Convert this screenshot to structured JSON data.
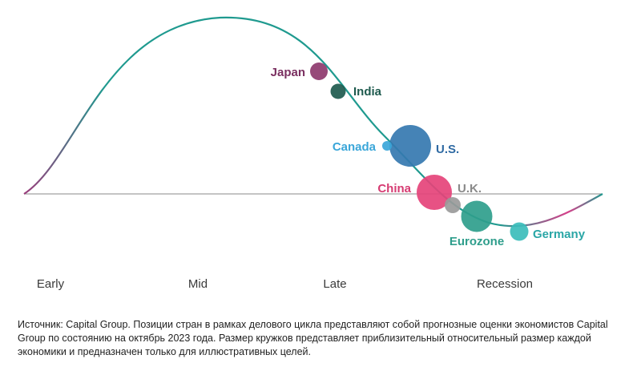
{
  "colors": {
    "curve_start": "#9c3c7c",
    "curve_main": "#1f9a8f",
    "curve_tail": "#d6408a",
    "baseline": "#8a8a8a",
    "phase_text": "#3a3a3a"
  },
  "phases": [
    {
      "name": "Early"
    },
    {
      "name": "Mid"
    },
    {
      "name": "Late"
    },
    {
      "name": "Recession"
    }
  ],
  "countries": [
    {
      "name": "Japan",
      "color": "#8e3a6e",
      "label_color": "#7a2f60",
      "relative_size": 3
    },
    {
      "name": "India",
      "color": "#1e5a4e",
      "label_color": "#1e5a4e",
      "relative_size": 2
    },
    {
      "name": "Canada",
      "color": "#3aa6d9",
      "label_color": "#3aa6d9",
      "relative_size": 1
    },
    {
      "name": "U.S.",
      "color": "#3578b0",
      "label_color": "#2f6aa3",
      "relative_size": 10
    },
    {
      "name": "China",
      "color": "#e5437a",
      "label_color": "#d63b72",
      "relative_size": 7
    },
    {
      "name": "U.K.",
      "color": "#9a9a9a",
      "label_color": "#8a8a8a",
      "relative_size": 1.5
    },
    {
      "name": "Eurozone",
      "color": "#2f9e8c",
      "label_color": "#2f9e8c",
      "relative_size": 6
    },
    {
      "name": "Germany",
      "color": "#3bbdbb",
      "label_color": "#2aa6a6",
      "relative_size": 2
    }
  ],
  "footnote": "Источник: Capital Group. Позиции стран в рамках делового цикла представляют собой прогнозные оценки экономистов Capital Group по состоянию на октябрь 2023 года. Размер кружков представляет приблизительный относительный размер каждой экономики и предназначен только для иллюстративных целей."
}
